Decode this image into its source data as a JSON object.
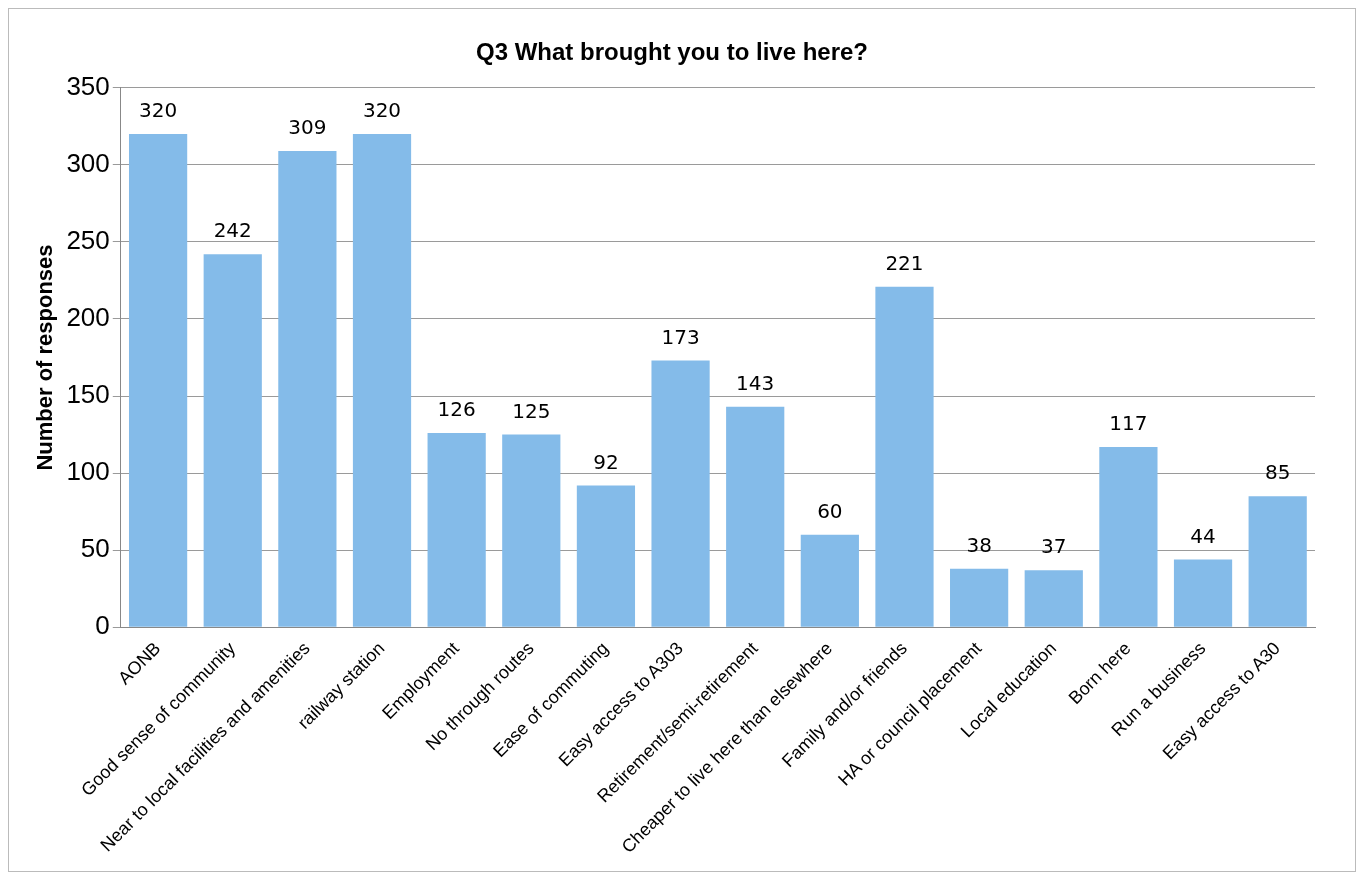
{
  "chart_data": {
    "type": "bar",
    "title": "Q3 What brought you to live here?",
    "ylabel": "Number of responses",
    "categories": [
      "AONB",
      "Good sense of community",
      "Near to local facilities and amenities",
      "railway station",
      "Employment",
      "No through routes",
      "Ease of commuting",
      "Easy access to A303",
      "Retirement/semi-retirement",
      "Cheaper to live here than elsewhere",
      "Family and/or friends",
      "HA or council placement",
      "Local education",
      "Born here",
      "Run a business",
      "Easy access to A30"
    ],
    "values": [
      320,
      242,
      309,
      320,
      126,
      125,
      92,
      173,
      143,
      60,
      221,
      38,
      37,
      117,
      44,
      85
    ],
    "color": "#84bbe9",
    "ylim": [
      0,
      350
    ],
    "yticks": [
      0,
      50,
      100,
      150,
      200,
      250,
      300,
      350
    ],
    "grid": "y",
    "legend": false,
    "data_labels": true
  }
}
